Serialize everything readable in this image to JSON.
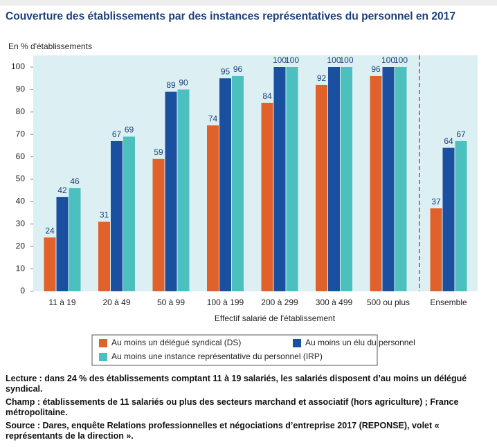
{
  "chart_data": {
    "type": "bar",
    "title": "Couverture des établissements par des instances représentatives du personnel en 2017",
    "y_label": "En % d'établissements",
    "x_label": "Effectif salarié de l'établissement",
    "categories": [
      "11 à 19",
      "20 à 49",
      "50 à 99",
      "100 à 199",
      "200 à 299",
      "300 à 499",
      "500 ou plus",
      "Ensemble"
    ],
    "series": [
      {
        "name": "Au moins un délégué syndical (DS)",
        "color": "#e0622a",
        "values": [
          24,
          31,
          59,
          74,
          84,
          92,
          96,
          37
        ]
      },
      {
        "name": "Au moins un élu du personnel",
        "color": "#1b4fa0",
        "values": [
          42,
          67,
          89,
          95,
          100,
          100,
          100,
          64
        ]
      },
      {
        "name": "Au moins une instance représentative du personnel (IRP)",
        "color": "#4cc0bf",
        "values": [
          46,
          69,
          90,
          96,
          100,
          100,
          100,
          67
        ]
      }
    ],
    "ylim": [
      0,
      100
    ],
    "yticks": [
      0,
      10,
      20,
      30,
      40,
      50,
      60,
      70,
      80,
      90,
      100
    ],
    "grid": false
  },
  "notes": [
    "Lecture : dans 24 % des établissements comptant 11 à 19 salariés, les salariés disposent d’au moins un délégué syndical.",
    "Champ : établissements de 11 salariés ou plus des secteurs marchand et associatif (hors agriculture) ; France métropolitaine.",
    "Source : Dares, enquête Relations professionnelles et négociations d’entreprise 2017 (REPONSE), volet « représentants de la direction »."
  ]
}
